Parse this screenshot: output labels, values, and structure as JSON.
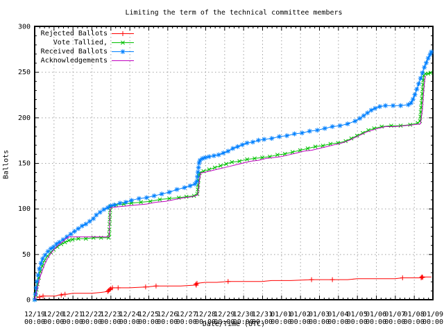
{
  "chart_data": {
    "type": "line",
    "title": "Limiting the term of the technical committee members",
    "xlabel": "Date/Time (UTC)",
    "ylabel": "Ballots",
    "grid": true,
    "legend_position": "top-left-inside",
    "ylim": [
      0,
      300
    ],
    "y_ticks": [
      0,
      50,
      100,
      150,
      200,
      250,
      300
    ],
    "y_minor_step": 10,
    "x_minor_per_day": 4,
    "x_tick_time_label": "00:00",
    "x_ticks": [
      "12/19",
      "12/20",
      "12/21",
      "12/22",
      "12/23",
      "12/24",
      "12/25",
      "12/26",
      "12/27",
      "12/28",
      "12/29",
      "12/30",
      "12/31",
      "01/01",
      "01/02",
      "01/03",
      "01/04",
      "01/05",
      "01/06",
      "01/07",
      "01/08",
      "01/09"
    ],
    "colors": {
      "grid": "#a0a0a0",
      "axis": "#000000"
    },
    "series": [
      {
        "name": "Rejected Ballots",
        "color": "#ff0000",
        "marker": "plus",
        "points": [
          [
            0,
            0
          ],
          [
            0.1,
            2
          ],
          [
            0.25,
            3
          ],
          [
            0.4,
            4
          ],
          [
            0.7,
            4
          ],
          [
            1.1,
            4
          ],
          [
            1.25,
            5
          ],
          [
            1.5,
            6
          ],
          [
            1.7,
            6
          ],
          [
            2.0,
            7
          ],
          [
            2.5,
            7
          ],
          [
            3.0,
            7
          ],
          [
            3.5,
            8
          ],
          [
            3.85,
            9
          ],
          [
            3.9,
            10
          ],
          [
            3.95,
            11
          ],
          [
            4.05,
            12
          ],
          [
            4.1,
            13
          ],
          [
            4.4,
            13
          ],
          [
            5.0,
            13
          ],
          [
            5.9,
            14
          ],
          [
            6.4,
            15
          ],
          [
            7.0,
            15
          ],
          [
            7.7,
            15
          ],
          [
            8.45,
            16
          ],
          [
            8.5,
            17
          ],
          [
            8.55,
            18
          ],
          [
            9.0,
            19
          ],
          [
            9.6,
            19
          ],
          [
            10.2,
            20
          ],
          [
            11.0,
            20
          ],
          [
            12.0,
            20
          ],
          [
            12.5,
            21
          ],
          [
            13.5,
            21
          ],
          [
            14.6,
            22
          ],
          [
            15.7,
            22
          ],
          [
            16.5,
            22
          ],
          [
            17.0,
            23
          ],
          [
            18.0,
            23
          ],
          [
            19.0,
            23
          ],
          [
            19.4,
            24
          ],
          [
            20.3,
            24
          ],
          [
            20.4,
            25
          ],
          [
            20.92,
            25
          ]
        ],
        "marker_points": [
          [
            0.26,
            3
          ],
          [
            0.44,
            4
          ],
          [
            1.4,
            5
          ],
          [
            1.6,
            6
          ],
          [
            3.85,
            9
          ],
          [
            3.9,
            10
          ],
          [
            3.95,
            11
          ],
          [
            4.0,
            12
          ],
          [
            4.1,
            13
          ],
          [
            4.4,
            13
          ],
          [
            5.85,
            14
          ],
          [
            6.4,
            15
          ],
          [
            8.5,
            17
          ],
          [
            8.52,
            16
          ],
          [
            8.56,
            18
          ],
          [
            10.2,
            20
          ],
          [
            14.6,
            22
          ],
          [
            15.7,
            22
          ],
          [
            19.4,
            24
          ],
          [
            20.38,
            24
          ],
          [
            20.42,
            25
          ],
          [
            20.46,
            24.5
          ]
        ]
      },
      {
        "name": "Vote Tallied,",
        "color": "#00c000",
        "marker": "cross",
        "points": [
          [
            0,
            0
          ],
          [
            0.05,
            5
          ],
          [
            0.1,
            11
          ],
          [
            0.15,
            17
          ],
          [
            0.22,
            24
          ],
          [
            0.3,
            31
          ],
          [
            0.4,
            37
          ],
          [
            0.52,
            43
          ],
          [
            0.68,
            48
          ],
          [
            0.85,
            52
          ],
          [
            1.0,
            55
          ],
          [
            1.2,
            58
          ],
          [
            1.4,
            61
          ],
          [
            1.6,
            63
          ],
          [
            1.8,
            65
          ],
          [
            2.0,
            66
          ],
          [
            2.3,
            67
          ],
          [
            2.7,
            67
          ],
          [
            3.1,
            68
          ],
          [
            3.5,
            68
          ],
          [
            3.9,
            68
          ],
          [
            3.93,
            72
          ],
          [
            3.94,
            77
          ],
          [
            3.95,
            83
          ],
          [
            3.96,
            88
          ],
          [
            3.97,
            93
          ],
          [
            3.98,
            98
          ],
          [
            4.0,
            102
          ],
          [
            4.3,
            104
          ],
          [
            4.7,
            105
          ],
          [
            5.1,
            106
          ],
          [
            5.6,
            107
          ],
          [
            6.1,
            108
          ],
          [
            6.6,
            110
          ],
          [
            7.1,
            111
          ],
          [
            7.6,
            112
          ],
          [
            8.0,
            113
          ],
          [
            8.4,
            114
          ],
          [
            8.58,
            116
          ],
          [
            8.6,
            121
          ],
          [
            8.62,
            126
          ],
          [
            8.64,
            131
          ],
          [
            8.66,
            136
          ],
          [
            8.7,
            139
          ],
          [
            8.9,
            141
          ],
          [
            9.2,
            143
          ],
          [
            9.5,
            145
          ],
          [
            9.8,
            147
          ],
          [
            10.1,
            149
          ],
          [
            10.4,
            151
          ],
          [
            10.8,
            152
          ],
          [
            11.2,
            154
          ],
          [
            11.6,
            155
          ],
          [
            12.0,
            156
          ],
          [
            12.4,
            157
          ],
          [
            12.8,
            159
          ],
          [
            13.2,
            160
          ],
          [
            13.6,
            162
          ],
          [
            14.0,
            164
          ],
          [
            14.4,
            166
          ],
          [
            14.8,
            168
          ],
          [
            15.2,
            169
          ],
          [
            15.6,
            171
          ],
          [
            16.0,
            172
          ],
          [
            16.4,
            174
          ],
          [
            16.7,
            177
          ],
          [
            17.0,
            180
          ],
          [
            17.3,
            183
          ],
          [
            17.6,
            186
          ],
          [
            17.9,
            188
          ],
          [
            18.3,
            190
          ],
          [
            18.8,
            191
          ],
          [
            19.3,
            191
          ],
          [
            19.8,
            192
          ],
          [
            20.2,
            194
          ],
          [
            20.32,
            196
          ],
          [
            20.34,
            201
          ],
          [
            20.36,
            206
          ],
          [
            20.38,
            211
          ],
          [
            20.4,
            216
          ],
          [
            20.42,
            221
          ],
          [
            20.44,
            226
          ],
          [
            20.46,
            231
          ],
          [
            20.48,
            236
          ],
          [
            20.5,
            241
          ],
          [
            20.52,
            246
          ],
          [
            20.6,
            248
          ],
          [
            20.75,
            248
          ],
          [
            20.88,
            249
          ]
        ]
      },
      {
        "name": "Received Ballots",
        "color": "#0080ff",
        "marker": "star",
        "points": [
          [
            0,
            0
          ],
          [
            0.04,
            6
          ],
          [
            0.08,
            13
          ],
          [
            0.12,
            20
          ],
          [
            0.18,
            27
          ],
          [
            0.25,
            34
          ],
          [
            0.33,
            40
          ],
          [
            0.42,
            45
          ],
          [
            0.55,
            49
          ],
          [
            0.7,
            53
          ],
          [
            0.85,
            56
          ],
          [
            1.0,
            58
          ],
          [
            1.15,
            61
          ],
          [
            1.3,
            63
          ],
          [
            1.5,
            66
          ],
          [
            1.7,
            69
          ],
          [
            1.9,
            72
          ],
          [
            2.1,
            75
          ],
          [
            2.3,
            78
          ],
          [
            2.5,
            81
          ],
          [
            2.7,
            83
          ],
          [
            2.9,
            86
          ],
          [
            3.1,
            89
          ],
          [
            3.25,
            93
          ],
          [
            3.45,
            96
          ],
          [
            3.65,
            99
          ],
          [
            3.85,
            101
          ],
          [
            4.0,
            103
          ],
          [
            4.2,
            104
          ],
          [
            4.5,
            106
          ],
          [
            4.8,
            107
          ],
          [
            5.1,
            109
          ],
          [
            5.5,
            111
          ],
          [
            5.9,
            112
          ],
          [
            6.3,
            114
          ],
          [
            6.7,
            116
          ],
          [
            7.1,
            118
          ],
          [
            7.5,
            121
          ],
          [
            7.9,
            123
          ],
          [
            8.2,
            125
          ],
          [
            8.45,
            127
          ],
          [
            8.55,
            130
          ],
          [
            8.58,
            135
          ],
          [
            8.61,
            140
          ],
          [
            8.64,
            145
          ],
          [
            8.67,
            150
          ],
          [
            8.72,
            153
          ],
          [
            8.85,
            155
          ],
          [
            9.0,
            156
          ],
          [
            9.2,
            157
          ],
          [
            9.45,
            158
          ],
          [
            9.7,
            159
          ],
          [
            9.95,
            161
          ],
          [
            10.2,
            163
          ],
          [
            10.45,
            166
          ],
          [
            10.7,
            168
          ],
          [
            10.95,
            170
          ],
          [
            11.2,
            172
          ],
          [
            11.5,
            173
          ],
          [
            11.8,
            175
          ],
          [
            12.1,
            176
          ],
          [
            12.5,
            177
          ],
          [
            12.9,
            179
          ],
          [
            13.3,
            180
          ],
          [
            13.7,
            182
          ],
          [
            14.1,
            183
          ],
          [
            14.5,
            185
          ],
          [
            14.9,
            186
          ],
          [
            15.3,
            188
          ],
          [
            15.7,
            190
          ],
          [
            16.1,
            191
          ],
          [
            16.5,
            193
          ],
          [
            16.9,
            196
          ],
          [
            17.15,
            199
          ],
          [
            17.35,
            202
          ],
          [
            17.55,
            205
          ],
          [
            17.75,
            208
          ],
          [
            17.95,
            210
          ],
          [
            18.2,
            212
          ],
          [
            18.5,
            213
          ],
          [
            18.9,
            213
          ],
          [
            19.3,
            213
          ],
          [
            19.7,
            214
          ],
          [
            19.85,
            216
          ],
          [
            19.95,
            220
          ],
          [
            20.05,
            225
          ],
          [
            20.15,
            231
          ],
          [
            20.25,
            237
          ],
          [
            20.35,
            243
          ],
          [
            20.45,
            249
          ],
          [
            20.55,
            255
          ],
          [
            20.65,
            260
          ],
          [
            20.75,
            265
          ],
          [
            20.85,
            269
          ],
          [
            20.92,
            272
          ]
        ]
      },
      {
        "name": "Acknowledgements",
        "color": "#c000c0",
        "marker": "none",
        "points": [
          [
            0,
            0
          ],
          [
            0.06,
            5
          ],
          [
            0.12,
            11
          ],
          [
            0.2,
            18
          ],
          [
            0.3,
            26
          ],
          [
            0.42,
            33
          ],
          [
            0.55,
            40
          ],
          [
            0.7,
            46
          ],
          [
            0.9,
            52
          ],
          [
            1.1,
            57
          ],
          [
            1.3,
            61
          ],
          [
            1.5,
            64
          ],
          [
            1.65,
            67
          ],
          [
            1.8,
            69
          ],
          [
            3.93,
            69
          ],
          [
            3.97,
            96
          ],
          [
            4.0,
            101
          ],
          [
            4.4,
            102
          ],
          [
            4.9,
            103
          ],
          [
            5.4,
            104
          ],
          [
            5.9,
            105
          ],
          [
            6.4,
            107
          ],
          [
            6.9,
            108
          ],
          [
            7.4,
            110
          ],
          [
            7.9,
            112
          ],
          [
            8.3,
            113
          ],
          [
            8.6,
            115
          ],
          [
            8.68,
            130
          ],
          [
            8.75,
            139
          ],
          [
            9.0,
            140
          ],
          [
            9.4,
            142
          ],
          [
            9.8,
            144
          ],
          [
            10.2,
            146
          ],
          [
            10.6,
            148
          ],
          [
            11.0,
            150
          ],
          [
            11.4,
            152
          ],
          [
            11.8,
            153
          ],
          [
            12.2,
            155
          ],
          [
            12.6,
            156
          ],
          [
            13.0,
            157
          ],
          [
            13.4,
            159
          ],
          [
            13.8,
            161
          ],
          [
            14.2,
            163
          ],
          [
            14.6,
            164
          ],
          [
            15.0,
            166
          ],
          [
            15.4,
            168
          ],
          [
            15.8,
            170
          ],
          [
            16.2,
            172
          ],
          [
            16.6,
            175
          ],
          [
            16.9,
            178
          ],
          [
            17.2,
            181
          ],
          [
            17.5,
            184
          ],
          [
            17.8,
            186
          ],
          [
            18.1,
            188
          ],
          [
            18.5,
            190
          ],
          [
            19.0,
            190
          ],
          [
            19.5,
            191
          ],
          [
            20.0,
            192
          ],
          [
            20.35,
            193
          ],
          [
            20.45,
            210
          ],
          [
            20.5,
            225
          ],
          [
            20.55,
            238
          ],
          [
            20.6,
            246
          ]
        ]
      }
    ]
  }
}
